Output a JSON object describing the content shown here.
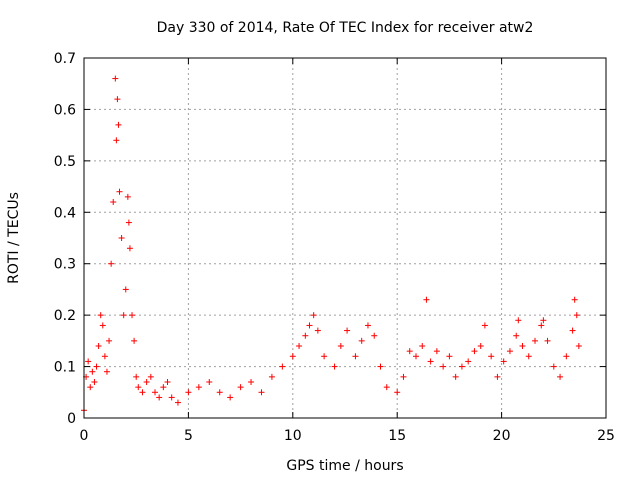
{
  "chart_data": {
    "type": "scatter",
    "title": "Day 330 of 2014, Rate Of TEC Index for receiver atw2",
    "xlabel": "GPS time / hours",
    "ylabel": "ROTI / TECUs",
    "xlim": [
      0,
      25
    ],
    "ylim": [
      0,
      0.7
    ],
    "xticks": [
      "0",
      "5",
      "10",
      "15",
      "20",
      "25"
    ],
    "yticks": [
      "0",
      "0.1",
      "0.2",
      "0.3",
      "0.4",
      "0.5",
      "0.6",
      "0.7"
    ],
    "grid": true,
    "marker": "+",
    "color": "#ff0000",
    "series": [
      {
        "x": [
          0.0,
          0.1,
          0.2,
          0.3,
          0.4,
          0.5,
          0.6,
          0.7,
          0.8,
          0.9,
          1.0,
          1.1,
          1.2,
          1.3,
          1.4,
          1.5,
          1.55,
          1.6,
          1.65,
          1.7,
          1.8,
          1.9,
          2.0,
          2.1,
          2.15,
          2.2,
          2.3,
          2.4,
          2.5,
          2.6,
          2.8,
          3.0,
          3.2,
          3.4,
          3.6,
          3.8,
          4.0,
          4.2,
          4.5,
          5.0,
          5.5,
          6.0,
          6.5,
          7.0,
          7.5,
          8.0,
          8.5,
          9.0,
          9.5,
          10.0,
          10.3,
          10.6,
          10.8,
          11.0,
          11.2,
          11.5,
          12.0,
          12.3,
          12.6,
          13.0,
          13.3,
          13.6,
          13.9,
          14.2,
          14.5,
          15.0,
          15.3,
          15.6,
          15.9,
          16.2,
          16.4,
          16.6,
          16.9,
          17.2,
          17.5,
          17.8,
          18.1,
          18.4,
          18.7,
          19.0,
          19.2,
          19.5,
          19.8,
          20.1,
          20.4,
          20.7,
          20.8,
          21.0,
          21.3,
          21.6,
          21.9,
          22.0,
          22.2,
          22.5,
          22.8,
          23.1,
          23.4,
          23.5,
          23.6,
          23.7
        ],
        "y": [
          0.015,
          0.08,
          0.11,
          0.06,
          0.09,
          0.07,
          0.1,
          0.14,
          0.2,
          0.18,
          0.12,
          0.09,
          0.15,
          0.3,
          0.42,
          0.66,
          0.54,
          0.62,
          0.57,
          0.44,
          0.35,
          0.2,
          0.25,
          0.43,
          0.38,
          0.33,
          0.2,
          0.15,
          0.08,
          0.06,
          0.05,
          0.07,
          0.08,
          0.05,
          0.04,
          0.06,
          0.07,
          0.04,
          0.03,
          0.05,
          0.06,
          0.07,
          0.05,
          0.04,
          0.06,
          0.07,
          0.05,
          0.08,
          0.1,
          0.12,
          0.14,
          0.16,
          0.18,
          0.2,
          0.17,
          0.12,
          0.1,
          0.14,
          0.17,
          0.12,
          0.15,
          0.18,
          0.16,
          0.1,
          0.06,
          0.05,
          0.08,
          0.13,
          0.12,
          0.14,
          0.23,
          0.11,
          0.13,
          0.1,
          0.12,
          0.08,
          0.1,
          0.11,
          0.13,
          0.14,
          0.18,
          0.12,
          0.08,
          0.11,
          0.13,
          0.16,
          0.19,
          0.14,
          0.12,
          0.15,
          0.18,
          0.19,
          0.15,
          0.1,
          0.08,
          0.12,
          0.17,
          0.23,
          0.2,
          0.14
        ]
      }
    ]
  }
}
